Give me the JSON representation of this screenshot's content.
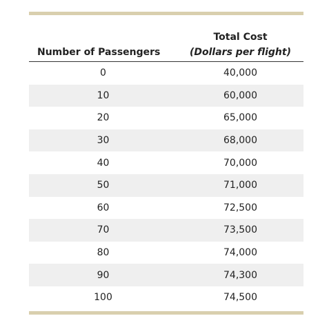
{
  "table": {
    "header": {
      "col1": "Number of Passengers",
      "col2_line1": "Total Cost",
      "col2_line2": "(Dollars per flight)"
    },
    "rows": [
      {
        "passengers": "0",
        "cost": "40,000"
      },
      {
        "passengers": "10",
        "cost": "60,000"
      },
      {
        "passengers": "20",
        "cost": "65,000"
      },
      {
        "passengers": "30",
        "cost": "68,000"
      },
      {
        "passengers": "40",
        "cost": "70,000"
      },
      {
        "passengers": "50",
        "cost": "71,000"
      },
      {
        "passengers": "60",
        "cost": "72,500"
      },
      {
        "passengers": "70",
        "cost": "73,500"
      },
      {
        "passengers": "80",
        "cost": "74,000"
      },
      {
        "passengers": "90",
        "cost": "74,300"
      },
      {
        "passengers": "100",
        "cost": "74,500"
      }
    ],
    "colors": {
      "rule": "#d9cfae",
      "row_shade": "#efefef"
    }
  }
}
